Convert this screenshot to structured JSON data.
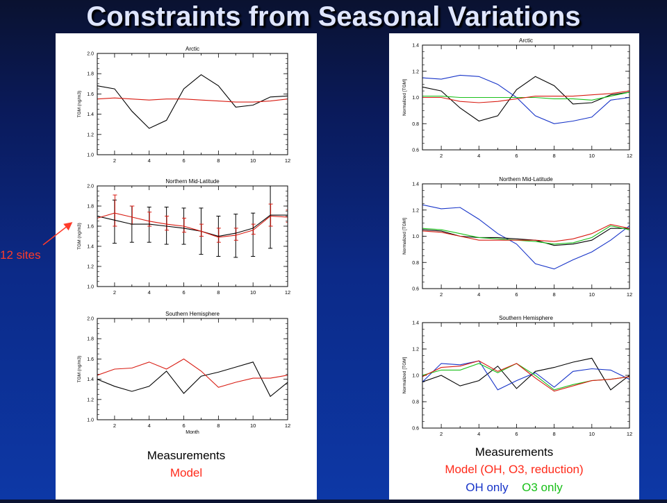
{
  "slide": {
    "title": "Constraints from Seasonal Variations",
    "annotation": "12 sites",
    "colors": {
      "background_top": "#0a1230",
      "background_bottom": "#0d38a6",
      "annotation": "#ff3b2a"
    }
  },
  "panels": {
    "left": {
      "legend": [
        {
          "text": "Measurements",
          "color": "#000000"
        },
        {
          "text": "Model",
          "color": "#ff2a1a"
        }
      ]
    },
    "right": {
      "legend": [
        {
          "text": "Measurements",
          "color": "#000000"
        },
        {
          "text": "Model (OH, O3, reduction)",
          "color": "#ff2a1a"
        },
        {
          "text": "OH only",
          "color": "#1633c8",
          "inline": true
        },
        {
          "text": "O3 only",
          "color": "#18c018",
          "inline": true
        }
      ]
    }
  },
  "chart_data": [
    {
      "id": "left-arctic",
      "type": "line",
      "title": "Arctic",
      "ylabel": "TGM (ng/m3)",
      "xlabel": "",
      "xlim": [
        1,
        12
      ],
      "ylim": [
        1.0,
        2.0
      ],
      "xticks": [
        2,
        4,
        6,
        8,
        10,
        12
      ],
      "yticks": [
        "1.0",
        "1.2",
        "1.4",
        "1.6",
        "1.8",
        "2.0"
      ],
      "x": [
        1,
        2,
        3,
        4,
        5,
        6,
        7,
        8,
        9,
        10,
        11,
        12
      ],
      "series": [
        {
          "color": "#000000",
          "values": [
            1.68,
            1.65,
            1.43,
            1.26,
            1.34,
            1.65,
            1.79,
            1.68,
            1.47,
            1.49,
            1.57,
            1.58
          ]
        },
        {
          "color": "#d81a10",
          "values": [
            1.55,
            1.56,
            1.55,
            1.54,
            1.55,
            1.55,
            1.54,
            1.53,
            1.52,
            1.52,
            1.53,
            1.55
          ]
        }
      ]
    },
    {
      "id": "left-nml",
      "type": "line",
      "title": "Northern Mid-Latitude",
      "ylabel": "TGM (ng/m3)",
      "xlabel": "",
      "xlim": [
        1,
        12
      ],
      "ylim": [
        1.0,
        2.0
      ],
      "xticks": [
        2,
        4,
        6,
        8,
        10,
        12
      ],
      "yticks": [
        "1.0",
        "1.2",
        "1.4",
        "1.6",
        "1.8",
        "2.0"
      ],
      "x": [
        1,
        2,
        3,
        4,
        5,
        6,
        7,
        8,
        9,
        10,
        11,
        12
      ],
      "series": [
        {
          "color": "#000000",
          "values": [
            1.7,
            1.66,
            1.62,
            1.62,
            1.6,
            1.58,
            1.55,
            1.5,
            1.53,
            1.58,
            1.71,
            1.71
          ]
        },
        {
          "color": "#d81a10",
          "values": [
            1.68,
            1.73,
            1.69,
            1.65,
            1.62,
            1.6,
            1.55,
            1.49,
            1.51,
            1.56,
            1.7,
            1.69
          ]
        }
      ],
      "errorbars": [
        {
          "color": "#000000",
          "x": [
            2,
            3,
            4,
            5,
            6,
            7,
            8,
            9,
            10,
            11
          ],
          "low": [
            1.43,
            1.44,
            1.44,
            1.42,
            1.42,
            1.32,
            1.3,
            1.29,
            1.3,
            1.38
          ],
          "high": [
            1.86,
            1.8,
            1.79,
            1.79,
            1.78,
            1.78,
            1.7,
            1.72,
            1.73,
            2.03
          ]
        },
        {
          "color": "#d81a10",
          "x": [
            2,
            3,
            4,
            5,
            6,
            7,
            8,
            9,
            10,
            11,
            12
          ],
          "low": [
            1.6,
            1.62,
            1.6,
            1.56,
            1.54,
            1.5,
            1.44,
            1.46,
            1.52,
            1.6,
            1.64
          ],
          "high": [
            1.91,
            1.8,
            1.74,
            1.7,
            1.68,
            1.62,
            1.58,
            1.58,
            1.62,
            1.82,
            1.76
          ]
        }
      ]
    },
    {
      "id": "left-sh",
      "type": "line",
      "title": "Southern Hemisphere",
      "ylabel": "TGM (ng/m3)",
      "xlabel": "Month",
      "xlim": [
        1,
        12
      ],
      "ylim": [
        1.0,
        2.0
      ],
      "xticks": [
        2,
        4,
        6,
        8,
        10,
        12
      ],
      "yticks": [
        "1.0",
        "1.2",
        "1.4",
        "1.6",
        "1.8",
        "2.0"
      ],
      "x": [
        1,
        2,
        3,
        4,
        5,
        6,
        7,
        8,
        9,
        10,
        11,
        12
      ],
      "series": [
        {
          "color": "#000000",
          "values": [
            1.4,
            1.33,
            1.28,
            1.33,
            1.48,
            1.26,
            1.43,
            1.47,
            1.52,
            1.57,
            1.23,
            1.37
          ]
        },
        {
          "color": "#d81a10",
          "values": [
            1.44,
            1.5,
            1.51,
            1.57,
            1.5,
            1.6,
            1.48,
            1.32,
            1.37,
            1.41,
            1.41,
            1.44
          ]
        }
      ]
    },
    {
      "id": "right-arctic",
      "type": "line",
      "title": "Arctic",
      "ylabel": "Normalized [TGM]",
      "xlabel": "",
      "xlim": [
        1,
        12
      ],
      "ylim": [
        0.6,
        1.4
      ],
      "xticks": [
        2,
        4,
        6,
        8,
        10,
        12
      ],
      "yticks": [
        "0.6",
        "0.8",
        "1.0",
        "1.2",
        "1.4"
      ],
      "x": [
        1,
        2,
        3,
        4,
        5,
        6,
        7,
        8,
        9,
        10,
        11,
        12
      ],
      "series": [
        {
          "color": "#000000",
          "values": [
            1.08,
            1.05,
            0.92,
            0.82,
            0.86,
            1.06,
            1.16,
            1.09,
            0.95,
            0.96,
            1.02,
            1.04
          ]
        },
        {
          "color": "#1633c8",
          "values": [
            1.15,
            1.14,
            1.17,
            1.16,
            1.1,
            1.0,
            0.86,
            0.8,
            0.82,
            0.85,
            0.98,
            1.0
          ]
        },
        {
          "color": "#18c018",
          "values": [
            1.01,
            1.01,
            1.0,
            1.0,
            1.0,
            1.0,
            1.0,
            0.99,
            0.99,
            0.98,
            1.01,
            1.04
          ]
        },
        {
          "color": "#d81a10",
          "values": [
            1.0,
            1.0,
            0.97,
            0.96,
            0.97,
            0.99,
            1.01,
            1.01,
            1.01,
            1.02,
            1.03,
            1.05
          ]
        }
      ]
    },
    {
      "id": "right-nml",
      "type": "line",
      "title": "Northern Mid-Latitude",
      "ylabel": "Normalized [TGM]",
      "xlabel": "",
      "xlim": [
        1,
        12
      ],
      "ylim": [
        0.6,
        1.4
      ],
      "xticks": [
        2,
        4,
        6,
        8,
        10,
        12
      ],
      "yticks": [
        "0.6",
        "0.8",
        "1.0",
        "1.2",
        "1.4"
      ],
      "x": [
        1,
        2,
        3,
        4,
        5,
        6,
        7,
        8,
        9,
        10,
        11,
        12
      ],
      "series": [
        {
          "color": "#1633c8",
          "values": [
            1.24,
            1.21,
            1.22,
            1.13,
            1.02,
            0.94,
            0.79,
            0.75,
            0.82,
            0.88,
            0.97,
            1.08
          ]
        },
        {
          "color": "#000000",
          "values": [
            1.05,
            1.04,
            1.0,
            0.99,
            0.99,
            0.98,
            0.97,
            0.93,
            0.94,
            0.97,
            1.06,
            1.06
          ]
        },
        {
          "color": "#18c018",
          "values": [
            1.06,
            1.05,
            1.02,
            0.99,
            0.98,
            0.97,
            0.96,
            0.94,
            0.95,
            0.99,
            1.08,
            1.05
          ]
        },
        {
          "color": "#d81a10",
          "values": [
            1.04,
            1.03,
            1.0,
            0.97,
            0.97,
            0.97,
            0.97,
            0.96,
            0.98,
            1.02,
            1.09,
            1.06
          ]
        }
      ]
    },
    {
      "id": "right-sh",
      "type": "line",
      "title": "Southern Hemisphere",
      "ylabel": "Normalized [TGM]",
      "xlabel": "",
      "xlim": [
        1,
        12
      ],
      "ylim": [
        0.6,
        1.4
      ],
      "xticks": [
        2,
        4,
        6,
        8,
        10,
        12
      ],
      "yticks": [
        "0.6",
        "0.8",
        "1.0",
        "1.2",
        "1.4"
      ],
      "x": [
        1,
        2,
        3,
        4,
        5,
        6,
        7,
        8,
        9,
        10,
        11,
        12
      ],
      "series": [
        {
          "color": "#000000",
          "values": [
            0.95,
            1.0,
            0.92,
            0.96,
            1.07,
            0.9,
            1.03,
            1.06,
            1.1,
            1.13,
            0.89,
            1.0
          ]
        },
        {
          "color": "#1633c8",
          "values": [
            0.95,
            1.09,
            1.08,
            1.11,
            0.89,
            0.96,
            1.02,
            0.91,
            1.03,
            1.05,
            1.04,
            0.97
          ]
        },
        {
          "color": "#18c018",
          "values": [
            1.0,
            1.04,
            1.04,
            1.09,
            1.02,
            1.09,
            1.0,
            0.89,
            0.93,
            0.96,
            0.97,
            0.99
          ]
        },
        {
          "color": "#d81a10",
          "values": [
            0.99,
            1.06,
            1.07,
            1.11,
            1.03,
            1.09,
            0.98,
            0.88,
            0.92,
            0.96,
            0.97,
            0.99
          ]
        }
      ]
    }
  ]
}
